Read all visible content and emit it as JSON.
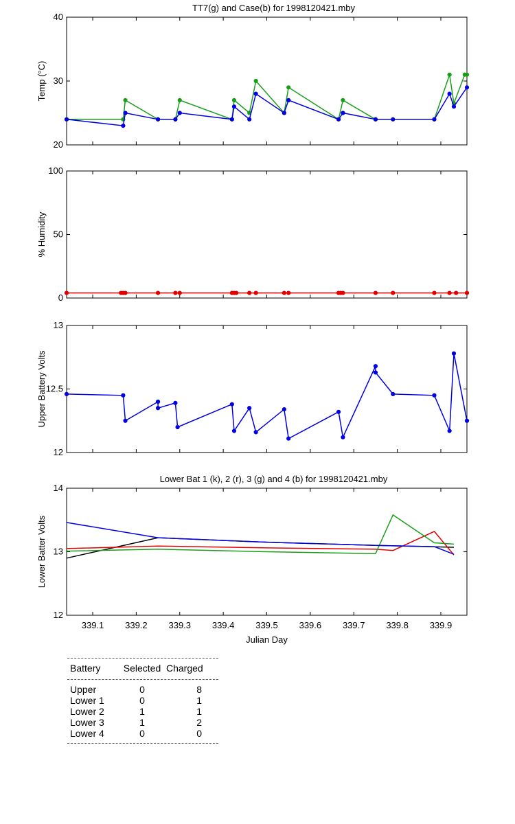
{
  "chart_data": [
    {
      "type": "line",
      "title": "TT7(g) and Case(b) for 1998120421.mby",
      "xlabel": "",
      "ylabel": "Temp  (°C)",
      "ylim": [
        20,
        40
      ],
      "yticks": [
        "20",
        "30",
        "40"
      ],
      "series": [
        {
          "name": "TT7",
          "color": "#1a9e1a",
          "x": [
            339.04,
            339.17,
            339.175,
            339.25,
            339.29,
            339.3,
            339.42,
            339.425,
            339.46,
            339.475,
            339.54,
            339.55,
            339.665,
            339.675,
            339.75,
            339.75
          ],
          "y": [
            24,
            24,
            27,
            24,
            24,
            27,
            24,
            27,
            25,
            30,
            25,
            29,
            24,
            27,
            24,
            24
          ]
        },
        {
          "name": "TT7b",
          "color": "#1a9e1a",
          "x": [
            339.885,
            339.92,
            339.93,
            339.955,
            339.96
          ],
          "y": [
            24,
            31,
            26.5,
            31,
            31
          ]
        },
        {
          "name": "Case",
          "color": "#0000e0",
          "x": [
            339.04,
            339.17,
            339.175,
            339.25,
            339.29,
            339.3,
            339.42,
            339.425,
            339.46,
            339.475,
            339.54,
            339.55,
            339.665,
            339.675,
            339.75,
            339.79,
            339.885,
            339.92,
            339.93,
            339.96
          ],
          "y": [
            24,
            23,
            25,
            24,
            24,
            25,
            24,
            26,
            24,
            28,
            25,
            27,
            24,
            25,
            24,
            24,
            24,
            28,
            26,
            29
          ]
        }
      ]
    },
    {
      "type": "line",
      "title": "",
      "xlabel": "",
      "ylabel": "% Humidity",
      "ylim": [
        0,
        100
      ],
      "yticks": [
        "0",
        "50",
        "100"
      ],
      "series": [
        {
          "name": "Humidity",
          "color": "#e00000",
          "x": [
            339.04,
            339.165,
            339.17,
            339.175,
            339.25,
            339.29,
            339.3,
            339.42,
            339.425,
            339.43,
            339.46,
            339.475,
            339.54,
            339.55,
            339.665,
            339.67,
            339.675,
            339.75,
            339.79,
            339.885,
            339.92,
            339.935,
            339.96
          ],
          "y": [
            4,
            4,
            4,
            4,
            4,
            4,
            4,
            4,
            4,
            4,
            4,
            4,
            4,
            4,
            4,
            4,
            4,
            4,
            4,
            4,
            4,
            4,
            4
          ]
        }
      ]
    },
    {
      "type": "line",
      "title": "",
      "xlabel": "",
      "ylabel": "Upper Battery Volts",
      "ylim": [
        12,
        13
      ],
      "yticks": [
        "12",
        "12.5",
        "13"
      ],
      "series": [
        {
          "name": "Upper",
          "color": "#0000e0",
          "x": [
            339.04,
            339.17,
            339.175,
            339.25,
            339.25,
            339.29,
            339.295,
            339.42,
            339.425,
            339.46,
            339.475,
            339.54,
            339.55,
            339.665,
            339.675,
            339.75,
            339.75,
            339.79,
            339.885,
            339.92,
            339.93,
            339.96
          ],
          "y": [
            12.46,
            12.45,
            12.25,
            12.4,
            12.35,
            12.39,
            12.2,
            12.38,
            12.17,
            12.35,
            12.16,
            12.34,
            12.11,
            12.32,
            12.12,
            12.68,
            12.63,
            12.46,
            12.45,
            12.17,
            12.78,
            12.25
          ]
        }
      ]
    },
    {
      "type": "line",
      "title": "Lower Bat 1 (k), 2 (r), 3 (g) and 4 (b) for 1998120421.mby",
      "xlabel": "Julian Day",
      "ylabel": "Lower Batter Volts",
      "ylim": [
        12,
        14
      ],
      "yticks": [
        "12",
        "13",
        "14"
      ],
      "xticks": [
        "339.1",
        "339.2",
        "339.3",
        "339.4",
        "339.5",
        "339.6",
        "339.7",
        "339.8",
        "339.9"
      ],
      "series": [
        {
          "name": "Lower 1",
          "color": "#000000",
          "x": [
            339.04,
            339.25,
            339.5,
            339.75,
            339.93
          ],
          "y": [
            12.9,
            13.22,
            13.15,
            13.1,
            13.07
          ]
        },
        {
          "name": "Lower 2",
          "color": "#e00000",
          "x": [
            339.04,
            339.25,
            339.5,
            339.75,
            339.79,
            339.885,
            339.93
          ],
          "y": [
            13.05,
            13.09,
            13.06,
            13.04,
            13.02,
            13.32,
            12.95
          ]
        },
        {
          "name": "Lower 3",
          "color": "#1a9e1a",
          "x": [
            339.04,
            339.25,
            339.5,
            339.75,
            339.79,
            339.885,
            339.93
          ],
          "y": [
            13.01,
            13.04,
            13.0,
            12.97,
            13.58,
            13.14,
            13.12
          ]
        },
        {
          "name": "Lower 4",
          "color": "#0000e0",
          "x": [
            339.04,
            339.25,
            339.5,
            339.75,
            339.885,
            339.93
          ],
          "y": [
            13.46,
            13.22,
            13.15,
            13.1,
            13.08,
            12.96
          ]
        }
      ]
    }
  ],
  "table": {
    "headers": [
      "Battery",
      "Selected",
      "Charged"
    ],
    "rows": [
      [
        "Upper",
        "0",
        "8"
      ],
      [
        "Lower 1",
        "0",
        "1"
      ],
      [
        "Lower 2",
        "1",
        "1"
      ],
      [
        "Lower 3",
        "1",
        "2"
      ],
      [
        "Lower 4",
        "0",
        "0"
      ]
    ]
  }
}
